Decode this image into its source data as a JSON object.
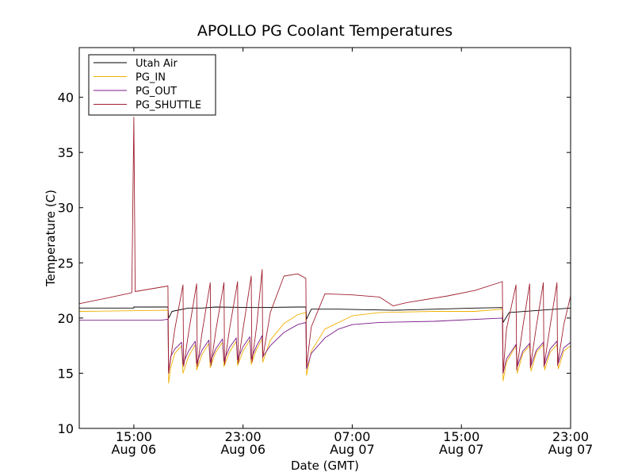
{
  "chart_data": {
    "type": "line",
    "title": "APOLLO PG Coolant Temperatures",
    "xlabel": "Date (GMT)",
    "ylabel": "Temperature (C)",
    "xlim": [
      11.0,
      47.0
    ],
    "ylim": [
      10,
      44.5
    ],
    "y_ticks": [
      10,
      15,
      20,
      25,
      30,
      35,
      40
    ],
    "x_ticks": [
      {
        "x": 15,
        "time": "15:00",
        "date": "Aug 06"
      },
      {
        "x": 23,
        "time": "23:00",
        "date": "Aug 06"
      },
      {
        "x": 31,
        "time": "07:00",
        "date": "Aug 07"
      },
      {
        "x": 39,
        "time": "15:00",
        "date": "Aug 07"
      },
      {
        "x": 47,
        "time": "23:00",
        "date": "Aug 07"
      }
    ],
    "legend_position": "top-left",
    "series": [
      {
        "name": "Utah Air",
        "color": "#000000",
        "points": [
          [
            11.0,
            20.9
          ],
          [
            15.0,
            20.9
          ],
          [
            15.0,
            21.0
          ],
          [
            17.5,
            21.0
          ],
          [
            17.55,
            20.0
          ],
          [
            17.8,
            20.6
          ],
          [
            19.0,
            20.9
          ],
          [
            20.0,
            20.9
          ],
          [
            21.0,
            21.0
          ],
          [
            24.0,
            20.95
          ],
          [
            27.0,
            21.0
          ],
          [
            27.6,
            21.0
          ],
          [
            27.65,
            19.9
          ],
          [
            28.0,
            20.8
          ],
          [
            30.0,
            20.8
          ],
          [
            34.0,
            20.7
          ],
          [
            40.0,
            20.9
          ],
          [
            42.0,
            20.95
          ],
          [
            42.05,
            19.6
          ],
          [
            42.5,
            20.5
          ],
          [
            47.0,
            20.9
          ]
        ]
      },
      {
        "name": "PG_IN",
        "color": "#f0b000",
        "points": [
          [
            11.0,
            20.6
          ],
          [
            17.5,
            20.7
          ],
          [
            17.55,
            14.1
          ],
          [
            17.7,
            15.5
          ],
          [
            18.0,
            16.8
          ],
          [
            18.5,
            17.5
          ],
          [
            18.6,
            15.0
          ],
          [
            19.0,
            16.5
          ],
          [
            19.5,
            17.6
          ],
          [
            19.6,
            15.3
          ],
          [
            20.0,
            16.7
          ],
          [
            20.5,
            17.7
          ],
          [
            20.6,
            15.5
          ],
          [
            21.0,
            16.9
          ],
          [
            21.5,
            17.8
          ],
          [
            21.6,
            15.6
          ],
          [
            22.0,
            16.9
          ],
          [
            22.5,
            17.9
          ],
          [
            22.6,
            15.7
          ],
          [
            23.0,
            17.0
          ],
          [
            23.5,
            18.0
          ],
          [
            23.6,
            15.8
          ],
          [
            24.0,
            17.2
          ],
          [
            24.4,
            18.1
          ],
          [
            24.45,
            16.0
          ],
          [
            25.0,
            18.0
          ],
          [
            26.0,
            19.5
          ],
          [
            27.0,
            20.3
          ],
          [
            27.6,
            20.5
          ],
          [
            27.65,
            14.8
          ],
          [
            28.0,
            17.0
          ],
          [
            29.0,
            19.0
          ],
          [
            31.0,
            20.2
          ],
          [
            33.0,
            20.5
          ],
          [
            37.0,
            20.6
          ],
          [
            40.0,
            20.6
          ],
          [
            42.0,
            20.8
          ],
          [
            42.05,
            14.3
          ],
          [
            42.3,
            16.0
          ],
          [
            43.0,
            17.5
          ],
          [
            43.1,
            15.0
          ],
          [
            43.5,
            16.8
          ],
          [
            44.0,
            17.5
          ],
          [
            44.1,
            15.2
          ],
          [
            44.5,
            16.9
          ],
          [
            45.0,
            17.6
          ],
          [
            45.1,
            15.3
          ],
          [
            45.5,
            16.9
          ],
          [
            46.0,
            17.6
          ],
          [
            46.1,
            15.4
          ],
          [
            46.5,
            17.0
          ],
          [
            47.0,
            17.5
          ]
        ]
      },
      {
        "name": "PG_OUT",
        "color": "#7a1a8a",
        "points": [
          [
            11.0,
            19.8
          ],
          [
            17.0,
            19.8
          ],
          [
            17.5,
            19.9
          ],
          [
            17.55,
            15.0
          ],
          [
            17.7,
            16.5
          ],
          [
            18.0,
            17.2
          ],
          [
            18.5,
            17.8
          ],
          [
            18.6,
            15.8
          ],
          [
            19.0,
            17.0
          ],
          [
            19.5,
            17.9
          ],
          [
            19.6,
            15.9
          ],
          [
            20.0,
            17.1
          ],
          [
            20.5,
            18.0
          ],
          [
            20.6,
            16.0
          ],
          [
            21.0,
            17.2
          ],
          [
            21.5,
            18.1
          ],
          [
            21.6,
            16.1
          ],
          [
            22.0,
            17.3
          ],
          [
            22.5,
            18.2
          ],
          [
            22.6,
            16.2
          ],
          [
            23.0,
            17.4
          ],
          [
            23.5,
            18.3
          ],
          [
            23.6,
            16.3
          ],
          [
            24.0,
            17.5
          ],
          [
            24.4,
            18.4
          ],
          [
            24.45,
            16.5
          ],
          [
            25.0,
            17.5
          ],
          [
            26.0,
            18.7
          ],
          [
            27.0,
            19.4
          ],
          [
            27.6,
            19.6
          ],
          [
            27.65,
            15.4
          ],
          [
            28.0,
            16.8
          ],
          [
            29.0,
            18.2
          ],
          [
            30.0,
            19.0
          ],
          [
            31.0,
            19.4
          ],
          [
            33.0,
            19.6
          ],
          [
            37.0,
            19.7
          ],
          [
            42.0,
            20.0
          ],
          [
            42.05,
            15.0
          ],
          [
            42.3,
            16.3
          ],
          [
            43.0,
            17.6
          ],
          [
            43.1,
            15.6
          ],
          [
            43.5,
            17.0
          ],
          [
            44.0,
            17.7
          ],
          [
            44.1,
            15.7
          ],
          [
            44.5,
            17.1
          ],
          [
            45.0,
            17.8
          ],
          [
            45.1,
            15.8
          ],
          [
            45.5,
            17.2
          ],
          [
            46.0,
            17.9
          ],
          [
            46.1,
            15.9
          ],
          [
            46.5,
            17.3
          ],
          [
            47.0,
            17.8
          ]
        ]
      },
      {
        "name": "PG_SHUTTLE",
        "color": "#a02030",
        "points": [
          [
            11.0,
            21.3
          ],
          [
            13.0,
            21.8
          ],
          [
            14.5,
            22.2
          ],
          [
            14.85,
            22.3
          ],
          [
            15.0,
            38.2
          ],
          [
            15.1,
            22.4
          ],
          [
            17.5,
            22.9
          ],
          [
            17.55,
            15.0
          ],
          [
            18.0,
            19.0
          ],
          [
            18.6,
            23.0
          ],
          [
            18.65,
            15.6
          ],
          [
            19.0,
            18.6
          ],
          [
            19.6,
            23.1
          ],
          [
            19.65,
            15.6
          ],
          [
            20.0,
            18.7
          ],
          [
            20.6,
            23.2
          ],
          [
            20.65,
            15.7
          ],
          [
            21.0,
            18.8
          ],
          [
            21.6,
            23.2
          ],
          [
            21.65,
            15.8
          ],
          [
            22.0,
            18.9
          ],
          [
            22.6,
            23.3
          ],
          [
            22.65,
            15.9
          ],
          [
            23.0,
            19.0
          ],
          [
            23.6,
            23.8
          ],
          [
            23.65,
            16.0
          ],
          [
            24.0,
            19.3
          ],
          [
            24.4,
            24.4
          ],
          [
            24.45,
            16.4
          ],
          [
            25.0,
            20.5
          ],
          [
            26.0,
            23.8
          ],
          [
            27.0,
            24.0
          ],
          [
            27.6,
            23.6
          ],
          [
            27.65,
            15.6
          ],
          [
            28.0,
            19.2
          ],
          [
            29.0,
            22.2
          ],
          [
            31.0,
            22.1
          ],
          [
            33.0,
            21.9
          ],
          [
            34.0,
            21.1
          ],
          [
            35.0,
            21.4
          ],
          [
            38.0,
            22.0
          ],
          [
            40.0,
            22.5
          ],
          [
            42.0,
            23.3
          ],
          [
            42.05,
            15.0
          ],
          [
            42.3,
            19.0
          ],
          [
            43.0,
            23.0
          ],
          [
            43.05,
            15.3
          ],
          [
            43.5,
            19.2
          ],
          [
            44.0,
            23.1
          ],
          [
            44.05,
            15.5
          ],
          [
            44.5,
            19.3
          ],
          [
            45.0,
            23.2
          ],
          [
            45.05,
            15.6
          ],
          [
            45.5,
            19.3
          ],
          [
            46.0,
            23.2
          ],
          [
            46.05,
            15.7
          ],
          [
            46.5,
            19.4
          ],
          [
            47.0,
            22.0
          ]
        ]
      }
    ]
  }
}
